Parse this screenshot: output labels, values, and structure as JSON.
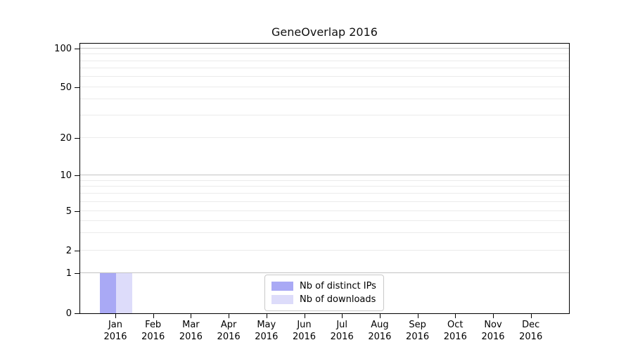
{
  "title": "GeneOverlap 2016",
  "chart_data": {
    "type": "bar",
    "title": "GeneOverlap 2016",
    "x_categories": [
      {
        "month": "Jan",
        "year": "2016"
      },
      {
        "month": "Feb",
        "year": "2016"
      },
      {
        "month": "Mar",
        "year": "2016"
      },
      {
        "month": "Apr",
        "year": "2016"
      },
      {
        "month": "May",
        "year": "2016"
      },
      {
        "month": "Jun",
        "year": "2016"
      },
      {
        "month": "Jul",
        "year": "2016"
      },
      {
        "month": "Aug",
        "year": "2016"
      },
      {
        "month": "Sep",
        "year": "2016"
      },
      {
        "month": "Oct",
        "year": "2016"
      },
      {
        "month": "Nov",
        "year": "2016"
      },
      {
        "month": "Dec",
        "year": "2016"
      }
    ],
    "series": [
      {
        "name": "Nb of distinct IPs",
        "color": "#a9a9f5",
        "values": [
          1,
          0,
          0,
          0,
          0,
          0,
          0,
          0,
          0,
          0,
          0,
          0
        ]
      },
      {
        "name": "Nb of downloads",
        "color": "#dddcfa",
        "values": [
          1,
          0,
          0,
          0,
          0,
          0,
          0,
          0,
          0,
          0,
          0,
          0
        ]
      }
    ],
    "y_axis": {
      "scale": "log-like",
      "tick_labels": [
        "0",
        "1",
        "2",
        "5",
        "10",
        "20",
        "50",
        "100"
      ],
      "tick_values": [
        0,
        1,
        2,
        5,
        10,
        20,
        50,
        100
      ],
      "major_gridline_values": [
        1,
        10,
        100
      ],
      "minor_gridline_values": [
        2,
        3,
        4,
        5,
        6,
        7,
        8,
        9,
        20,
        30,
        40,
        50,
        60,
        70,
        80,
        90
      ],
      "ylim": [
        0,
        110
      ]
    },
    "legend": {
      "position": "lower center",
      "items": [
        "Nb of distinct IPs",
        "Nb of downloads"
      ]
    },
    "grid": "horizontal"
  },
  "colors": {
    "background": "#ffffff",
    "axis": "#000000",
    "major_grid": "#c3c3c3",
    "minor_grid": "#ebebeb",
    "bar_distinct_ips": "#a9a9f5",
    "bar_downloads": "#dddcfa",
    "text": "#000000"
  }
}
